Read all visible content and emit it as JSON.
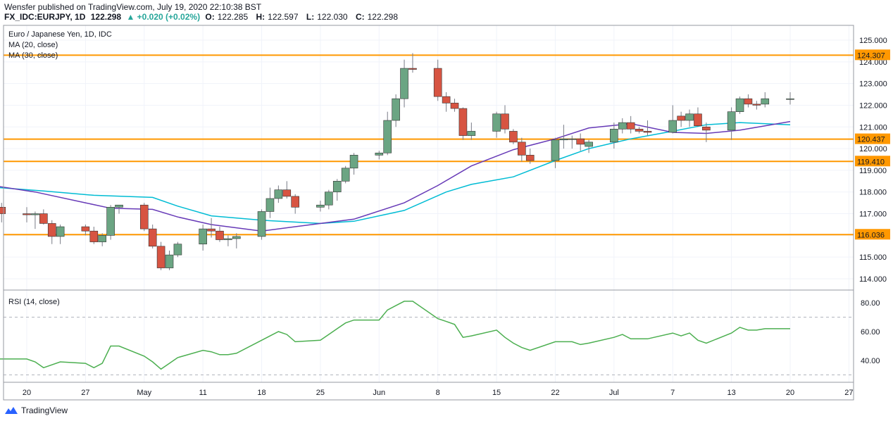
{
  "header": {
    "line1": "Wensfer published on TradingView.com, July 19, 2020 22:10:38 BST",
    "symbol": "FX_IDC:EURJPY, 1D",
    "last": "122.298",
    "change": "▲ +0.020 (+0.02%)",
    "o_label": "O:",
    "o_val": "122.285",
    "h_label": "H:",
    "h_val": "122.597",
    "l_label": "L:",
    "l_val": "122.030",
    "c_label": "C:",
    "c_val": "122.298"
  },
  "legend": {
    "title": "Euro / Japanese Yen, 1D, IDC",
    "ma20": "MA (20, close)",
    "ma30": "MA (30, close)",
    "rsi": "RSI (14, close)"
  },
  "footer": {
    "brand": "TradingView"
  },
  "colors": {
    "up": "#6ba583",
    "down": "#d75442",
    "ma20": "#673ab7",
    "ma30": "#00bcd4",
    "rsi": "#4caf50",
    "level": "#ff9800",
    "grid": "#f0f3fa",
    "border": "#9598a1"
  },
  "chart_data": {
    "type": "candlestick",
    "price_axis": {
      "ticks": [
        "125.000",
        "124.000",
        "123.000",
        "122.000",
        "121.000",
        "120.000",
        "119.000",
        "118.000",
        "117.000",
        "116.000",
        "115.000",
        "114.000"
      ]
    },
    "rsi_axis": {
      "ticks": [
        "80.00",
        "60.00",
        "40.00"
      ],
      "bands": [
        70,
        30
      ]
    },
    "time_axis": {
      "ticks": [
        {
          "label": "20",
          "date": "2020-04-20"
        },
        {
          "label": "27",
          "date": "2020-04-27"
        },
        {
          "label": "May",
          "date": "2020-05-04"
        },
        {
          "label": "11",
          "date": "2020-05-11"
        },
        {
          "label": "18",
          "date": "2020-05-18"
        },
        {
          "label": "25",
          "date": "2020-05-25"
        },
        {
          "label": "Jun",
          "date": "2020-06-01"
        },
        {
          "label": "8",
          "date": "2020-06-08"
        },
        {
          "label": "15",
          "date": "2020-06-15"
        },
        {
          "label": "22",
          "date": "2020-06-22"
        },
        {
          "label": "Jul",
          "date": "2020-06-29"
        },
        {
          "label": "7",
          "date": "2020-07-06"
        },
        {
          "label": "13",
          "date": "2020-07-13"
        },
        {
          "label": "20",
          "date": "2020-07-20"
        },
        {
          "label": "27",
          "date": "2020-07-27"
        }
      ]
    },
    "levels": [
      {
        "value": 124.307,
        "label": "124.307"
      },
      {
        "value": 120.437,
        "label": "120.437"
      },
      {
        "value": 119.41,
        "label": "119.410"
      },
      {
        "value": 116.036,
        "label": "116.036"
      }
    ],
    "candles": [
      {
        "date": "2020-04-16",
        "o": 117.2,
        "h": 117.5,
        "l": 116.9,
        "c": 117.3
      },
      {
        "date": "2020-04-17",
        "o": 117.3,
        "h": 117.5,
        "l": 116.6,
        "c": 117.0
      },
      {
        "date": "2020-04-20",
        "o": 117.0,
        "h": 117.3,
        "l": 116.6,
        "c": 116.95
      },
      {
        "date": "2020-04-21",
        "o": 116.95,
        "h": 117.1,
        "l": 116.3,
        "c": 117.0
      },
      {
        "date": "2020-04-22",
        "o": 117.0,
        "h": 117.2,
        "l": 116.5,
        "c": 116.55
      },
      {
        "date": "2020-04-23",
        "o": 116.55,
        "h": 116.7,
        "l": 115.6,
        "c": 115.95
      },
      {
        "date": "2020-04-24",
        "o": 115.95,
        "h": 116.5,
        "l": 115.6,
        "c": 116.4
      },
      {
        "date": "2020-04-27",
        "o": 116.4,
        "h": 116.5,
        "l": 116.0,
        "c": 116.2
      },
      {
        "date": "2020-04-28",
        "o": 116.2,
        "h": 116.4,
        "l": 115.6,
        "c": 115.7
      },
      {
        "date": "2020-04-29",
        "o": 115.7,
        "h": 116.1,
        "l": 115.5,
        "c": 116.0
      },
      {
        "date": "2020-04-30",
        "o": 116.0,
        "h": 117.4,
        "l": 115.8,
        "c": 117.3
      },
      {
        "date": "2020-05-01",
        "o": 117.3,
        "h": 117.4,
        "l": 117.0,
        "c": 117.4
      },
      {
        "date": "2020-05-04",
        "o": 117.4,
        "h": 117.5,
        "l": 116.2,
        "c": 116.3
      },
      {
        "date": "2020-05-05",
        "o": 116.3,
        "h": 116.5,
        "l": 115.4,
        "c": 115.5
      },
      {
        "date": "2020-05-06",
        "o": 115.5,
        "h": 115.7,
        "l": 114.4,
        "c": 114.5
      },
      {
        "date": "2020-05-07",
        "o": 114.5,
        "h": 115.3,
        "l": 114.4,
        "c": 115.1
      },
      {
        "date": "2020-05-08",
        "o": 115.1,
        "h": 115.7,
        "l": 115.0,
        "c": 115.6
      },
      {
        "date": "2020-05-11",
        "o": 115.6,
        "h": 116.5,
        "l": 115.3,
        "c": 116.3
      },
      {
        "date": "2020-05-12",
        "o": 116.3,
        "h": 116.8,
        "l": 115.9,
        "c": 116.2
      },
      {
        "date": "2020-05-13",
        "o": 116.2,
        "h": 116.4,
        "l": 115.7,
        "c": 115.8
      },
      {
        "date": "2020-05-14",
        "o": 115.8,
        "h": 116.0,
        "l": 115.5,
        "c": 115.85
      },
      {
        "date": "2020-05-15",
        "o": 115.85,
        "h": 116.1,
        "l": 115.4,
        "c": 115.95
      },
      {
        "date": "2020-05-18",
        "o": 115.95,
        "h": 117.2,
        "l": 115.8,
        "c": 117.1
      },
      {
        "date": "2020-05-19",
        "o": 117.1,
        "h": 118.2,
        "l": 116.8,
        "c": 117.7
      },
      {
        "date": "2020-05-20",
        "o": 117.7,
        "h": 118.3,
        "l": 117.5,
        "c": 118.1
      },
      {
        "date": "2020-05-21",
        "o": 118.1,
        "h": 118.5,
        "l": 117.7,
        "c": 117.8
      },
      {
        "date": "2020-05-22",
        "o": 117.8,
        "h": 117.9,
        "l": 117.0,
        "c": 117.3
      },
      {
        "date": "2020-05-25",
        "o": 117.3,
        "h": 117.6,
        "l": 117.1,
        "c": 117.4
      },
      {
        "date": "2020-05-26",
        "o": 117.4,
        "h": 118.1,
        "l": 117.2,
        "c": 118.0
      },
      {
        "date": "2020-05-27",
        "o": 118.0,
        "h": 118.6,
        "l": 117.6,
        "c": 118.5
      },
      {
        "date": "2020-05-28",
        "o": 118.5,
        "h": 119.2,
        "l": 118.4,
        "c": 119.1
      },
      {
        "date": "2020-05-29",
        "o": 119.1,
        "h": 119.8,
        "l": 118.8,
        "c": 119.7
      },
      {
        "date": "2020-06-01",
        "o": 119.7,
        "h": 119.9,
        "l": 119.5,
        "c": 119.8
      },
      {
        "date": "2020-06-02",
        "o": 119.8,
        "h": 121.7,
        "l": 119.7,
        "c": 121.3
      },
      {
        "date": "2020-06-03",
        "o": 121.3,
        "h": 122.5,
        "l": 121.0,
        "c": 122.3
      },
      {
        "date": "2020-06-04",
        "o": 122.3,
        "h": 124.1,
        "l": 121.9,
        "c": 123.7
      },
      {
        "date": "2020-06-05",
        "o": 123.7,
        "h": 124.4,
        "l": 123.5,
        "c": 123.65
      },
      {
        "date": "2020-06-08",
        "o": 123.7,
        "h": 124.1,
        "l": 122.2,
        "c": 122.4
      },
      {
        "date": "2020-06-09",
        "o": 122.4,
        "h": 122.6,
        "l": 121.7,
        "c": 122.1
      },
      {
        "date": "2020-06-10",
        "o": 122.1,
        "h": 122.3,
        "l": 121.7,
        "c": 121.85
      },
      {
        "date": "2020-06-11",
        "o": 121.85,
        "h": 121.9,
        "l": 120.4,
        "c": 120.6
      },
      {
        "date": "2020-06-12",
        "o": 120.6,
        "h": 121.2,
        "l": 120.4,
        "c": 120.8
      },
      {
        "date": "2020-06-15",
        "o": 120.8,
        "h": 121.7,
        "l": 120.5,
        "c": 121.6
      },
      {
        "date": "2020-06-16",
        "o": 121.6,
        "h": 122.0,
        "l": 120.7,
        "c": 120.9
      },
      {
        "date": "2020-06-17",
        "o": 120.8,
        "h": 120.9,
        "l": 120.2,
        "c": 120.3
      },
      {
        "date": "2020-06-18",
        "o": 120.3,
        "h": 120.5,
        "l": 119.4,
        "c": 119.7
      },
      {
        "date": "2020-06-19",
        "o": 119.7,
        "h": 120.0,
        "l": 119.3,
        "c": 119.45
      },
      {
        "date": "2020-06-22",
        "o": 119.45,
        "h": 120.5,
        "l": 119.1,
        "c": 120.4
      },
      {
        "date": "2020-06-23",
        "o": 120.4,
        "h": 121.1,
        "l": 120.0,
        "c": 120.45
      },
      {
        "date": "2020-06-24",
        "o": 120.45,
        "h": 120.6,
        "l": 120.0,
        "c": 120.45
      },
      {
        "date": "2020-06-25",
        "o": 120.45,
        "h": 120.7,
        "l": 119.9,
        "c": 120.2
      },
      {
        "date": "2020-06-26",
        "o": 120.1,
        "h": 120.4,
        "l": 119.8,
        "c": 120.3
      },
      {
        "date": "2020-06-29",
        "o": 120.3,
        "h": 121.2,
        "l": 120.0,
        "c": 120.9
      },
      {
        "date": "2020-06-30",
        "o": 120.9,
        "h": 121.4,
        "l": 120.7,
        "c": 121.2
      },
      {
        "date": "2020-07-01",
        "o": 121.2,
        "h": 121.5,
        "l": 120.7,
        "c": 120.9
      },
      {
        "date": "2020-07-02",
        "o": 120.9,
        "h": 121.0,
        "l": 120.7,
        "c": 120.8
      },
      {
        "date": "2020-07-03",
        "o": 120.8,
        "h": 121.3,
        "l": 120.6,
        "c": 120.75
      },
      {
        "date": "2020-07-06",
        "o": 120.75,
        "h": 122.0,
        "l": 120.7,
        "c": 121.3
      },
      {
        "date": "2020-07-07",
        "o": 121.5,
        "h": 121.7,
        "l": 121.0,
        "c": 121.3
      },
      {
        "date": "2020-07-08",
        "o": 121.3,
        "h": 121.8,
        "l": 121.0,
        "c": 121.6
      },
      {
        "date": "2020-07-09",
        "o": 121.6,
        "h": 121.9,
        "l": 121.0,
        "c": 121.05
      },
      {
        "date": "2020-07-10",
        "o": 121.0,
        "h": 121.2,
        "l": 120.3,
        "c": 120.85
      },
      {
        "date": "2020-07-13",
        "o": 120.85,
        "h": 121.9,
        "l": 120.4,
        "c": 121.7
      },
      {
        "date": "2020-07-14",
        "o": 121.7,
        "h": 122.4,
        "l": 121.6,
        "c": 122.3
      },
      {
        "date": "2020-07-15",
        "o": 122.3,
        "h": 122.5,
        "l": 121.9,
        "c": 122.05
      },
      {
        "date": "2020-07-16",
        "o": 122.05,
        "h": 122.2,
        "l": 121.8,
        "c": 122.0
      },
      {
        "date": "2020-07-17",
        "o": 122.05,
        "h": 122.6,
        "l": 121.9,
        "c": 122.3
      },
      {
        "date": "2020-07-20",
        "o": 122.285,
        "h": 122.597,
        "l": 122.03,
        "c": 122.298
      }
    ],
    "ma20": [
      [
        "2020-04-15",
        118.35
      ],
      [
        "2020-04-21",
        118.0
      ],
      [
        "2020-04-27",
        117.5
      ],
      [
        "2020-04-30",
        117.25
      ],
      [
        "2020-05-05",
        117.2
      ],
      [
        "2020-05-08",
        116.85
      ],
      [
        "2020-05-12",
        116.5
      ],
      [
        "2020-05-18",
        116.2
      ],
      [
        "2020-05-22",
        116.4
      ],
      [
        "2020-05-29",
        116.75
      ],
      [
        "2020-06-04",
        117.5
      ],
      [
        "2020-06-08",
        118.3
      ],
      [
        "2020-06-12",
        119.2
      ],
      [
        "2020-06-17",
        119.95
      ],
      [
        "2020-06-22",
        120.45
      ],
      [
        "2020-06-26",
        120.95
      ],
      [
        "2020-07-01",
        121.15
      ],
      [
        "2020-07-06",
        120.75
      ],
      [
        "2020-07-10",
        120.7
      ],
      [
        "2020-07-14",
        120.85
      ],
      [
        "2020-07-20",
        121.25
      ]
    ],
    "ma30": [
      [
        "2020-04-15",
        118.25
      ],
      [
        "2020-04-22",
        118.05
      ],
      [
        "2020-04-28",
        117.85
      ],
      [
        "2020-05-05",
        117.75
      ],
      [
        "2020-05-08",
        117.35
      ],
      [
        "2020-05-12",
        116.9
      ],
      [
        "2020-05-18",
        116.7
      ],
      [
        "2020-05-25",
        116.55
      ],
      [
        "2020-05-29",
        116.65
      ],
      [
        "2020-06-04",
        117.15
      ],
      [
        "2020-06-09",
        118.0
      ],
      [
        "2020-06-12",
        118.35
      ],
      [
        "2020-06-17",
        118.7
      ],
      [
        "2020-06-22",
        119.45
      ],
      [
        "2020-06-26",
        120.0
      ],
      [
        "2020-07-01",
        120.45
      ],
      [
        "2020-07-06",
        120.8
      ],
      [
        "2020-07-10",
        121.1
      ],
      [
        "2020-07-14",
        121.2
      ],
      [
        "2020-07-20",
        121.1
      ]
    ],
    "rsi": [
      [
        "2020-04-15",
        43
      ],
      [
        "2020-04-16",
        41
      ],
      [
        "2020-04-20",
        41
      ],
      [
        "2020-04-21",
        39
      ],
      [
        "2020-04-22",
        35
      ],
      [
        "2020-04-24",
        39
      ],
      [
        "2020-04-27",
        38
      ],
      [
        "2020-04-28",
        35
      ],
      [
        "2020-04-29",
        38
      ],
      [
        "2020-04-30",
        50
      ],
      [
        "2020-05-01",
        50
      ],
      [
        "2020-05-04",
        43
      ],
      [
        "2020-05-05",
        39
      ],
      [
        "2020-05-06",
        34
      ],
      [
        "2020-05-07",
        38
      ],
      [
        "2020-05-08",
        42
      ],
      [
        "2020-05-11",
        47
      ],
      [
        "2020-05-12",
        46
      ],
      [
        "2020-05-13",
        44
      ],
      [
        "2020-05-14",
        44
      ],
      [
        "2020-05-15",
        45
      ],
      [
        "2020-05-18",
        54
      ],
      [
        "2020-05-19",
        57
      ],
      [
        "2020-05-20",
        60
      ],
      [
        "2020-05-21",
        58
      ],
      [
        "2020-05-22",
        53
      ],
      [
        "2020-05-25",
        54
      ],
      [
        "2020-05-26",
        58
      ],
      [
        "2020-05-27",
        62
      ],
      [
        "2020-05-28",
        66
      ],
      [
        "2020-05-29",
        68
      ],
      [
        "2020-06-01",
        68
      ],
      [
        "2020-06-02",
        75
      ],
      [
        "2020-06-03",
        78
      ],
      [
        "2020-06-04",
        81
      ],
      [
        "2020-06-05",
        81
      ],
      [
        "2020-06-08",
        69
      ],
      [
        "2020-06-09",
        67
      ],
      [
        "2020-06-10",
        65
      ],
      [
        "2020-06-11",
        56
      ],
      [
        "2020-06-12",
        57
      ],
      [
        "2020-06-15",
        61
      ],
      [
        "2020-06-16",
        56
      ],
      [
        "2020-06-17",
        52
      ],
      [
        "2020-06-18",
        49
      ],
      [
        "2020-06-19",
        47
      ],
      [
        "2020-06-22",
        53
      ],
      [
        "2020-06-23",
        53
      ],
      [
        "2020-06-24",
        53
      ],
      [
        "2020-06-25",
        51
      ],
      [
        "2020-06-26",
        52
      ],
      [
        "2020-06-29",
        56
      ],
      [
        "2020-06-30",
        58
      ],
      [
        "2020-07-01",
        55
      ],
      [
        "2020-07-02",
        55
      ],
      [
        "2020-07-03",
        55
      ],
      [
        "2020-07-06",
        59
      ],
      [
        "2020-07-07",
        57
      ],
      [
        "2020-07-08",
        59
      ],
      [
        "2020-07-09",
        54
      ],
      [
        "2020-07-10",
        52
      ],
      [
        "2020-07-13",
        59
      ],
      [
        "2020-07-14",
        63
      ],
      [
        "2020-07-15",
        61
      ],
      [
        "2020-07-16",
        61
      ],
      [
        "2020-07-17",
        62
      ],
      [
        "2020-07-20",
        62
      ]
    ]
  }
}
